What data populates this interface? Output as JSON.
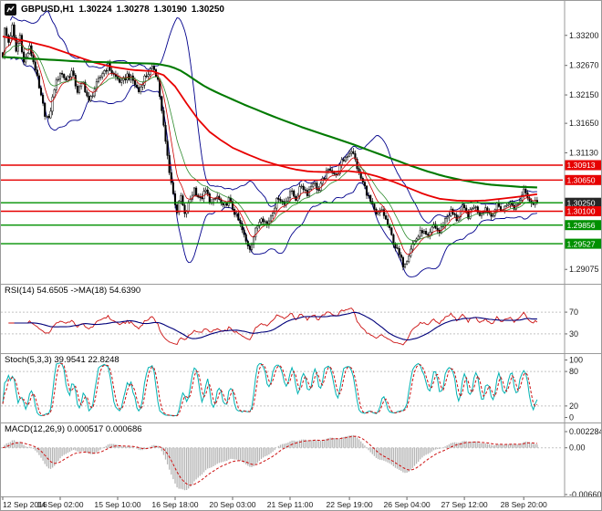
{
  "header": {
    "symbol": "GBPUSD,H1",
    "open": "1.30224",
    "high": "1.30278",
    "low": "1.30190",
    "close": "1.30250"
  },
  "chart_data": {
    "type": "candlestick",
    "symbol": "GBPUSD",
    "timeframe": "H1",
    "quote": {
      "open": 1.30224,
      "high": 1.30278,
      "low": 1.3019,
      "close": 1.3025
    },
    "time_axis": {
      "labels": [
        "12 Sep 2016",
        "14 Sep 02:00",
        "15 Sep 10:00",
        "16 Sep 18:00",
        "20 Sep 03:00",
        "21 Sep 11:00",
        "22 Sep 19:00",
        "26 Sep 04:00",
        "27 Sep 12:00",
        "28 Sep 20:00"
      ],
      "bar_positions": [
        0,
        30,
        60,
        90,
        120,
        150,
        181,
        211,
        241,
        272
      ]
    },
    "main": {
      "bars": 280,
      "bid": 1.3025,
      "price_axis_range": [
        1.2895,
        1.3355
      ],
      "price_ticks": [
        {
          "label": "1.33200",
          "value": 1.332
        },
        {
          "label": "1.32670",
          "value": 1.3267
        },
        {
          "label": "1.32150",
          "value": 1.3215
        },
        {
          "label": "1.31650",
          "value": 1.3165
        },
        {
          "label": "1.31130",
          "value": 1.3113
        },
        {
          "label": "1.29075",
          "value": 1.29075
        }
      ],
      "levels": [
        {
          "label": "1.30913",
          "price": 1.30913,
          "line_color": "#e60000",
          "tag_color": "#e60000"
        },
        {
          "label": "1.30650",
          "price": 1.3065,
          "line_color": "#e60000",
          "tag_color": "#e60000"
        },
        {
          "label": "1.30250",
          "price": 1.3025,
          "line_color": "#009000",
          "tag_color": "#262626"
        },
        {
          "label": "1.30100",
          "price": 1.301,
          "line_color": "#e60000",
          "tag_color": "#e60000"
        },
        {
          "label": "1.29856",
          "price": 1.29856,
          "line_color": "#009000",
          "tag_color": "#009000"
        },
        {
          "label": "1.29527",
          "price": 1.29527,
          "line_color": "#009000",
          "tag_color": "#009000"
        }
      ],
      "close_waypoints": [
        [
          0,
          1.3285
        ],
        [
          1,
          1.333
        ],
        [
          3,
          1.3308
        ],
        [
          5,
          1.3335
        ],
        [
          7,
          1.3292
        ],
        [
          9,
          1.332
        ],
        [
          11,
          1.3272
        ],
        [
          14,
          1.3298
        ],
        [
          17,
          1.3262
        ],
        [
          19,
          1.3225
        ],
        [
          22,
          1.3182
        ],
        [
          24,
          1.317
        ],
        [
          27,
          1.3228
        ],
        [
          30,
          1.3255
        ],
        [
          33,
          1.3242
        ],
        [
          36,
          1.3256
        ],
        [
          39,
          1.3222
        ],
        [
          42,
          1.3236
        ],
        [
          45,
          1.3202
        ],
        [
          48,
          1.3226
        ],
        [
          52,
          1.3254
        ],
        [
          55,
          1.3266
        ],
        [
          58,
          1.325
        ],
        [
          62,
          1.3236
        ],
        [
          65,
          1.325
        ],
        [
          68,
          1.324
        ],
        [
          71,
          1.3221
        ],
        [
          74,
          1.3246
        ],
        [
          77,
          1.3258
        ],
        [
          79,
          1.3262
        ],
        [
          81,
          1.3242
        ],
        [
          83,
          1.3185
        ],
        [
          85,
          1.3132
        ],
        [
          87,
          1.3082
        ],
        [
          89,
          1.304
        ],
        [
          91,
          1.301
        ],
        [
          93,
          1.3036
        ],
        [
          95,
          1.3002
        ],
        [
          97,
          1.3022
        ],
        [
          100,
          1.305
        ],
        [
          103,
          1.303
        ],
        [
          106,
          1.3046
        ],
        [
          109,
          1.3022
        ],
        [
          112,
          1.3036
        ],
        [
          115,
          1.3016
        ],
        [
          118,
          1.303
        ],
        [
          121,
          1.3008
        ],
        [
          124,
          1.2986
        ],
        [
          127,
          1.2956
        ],
        [
          129,
          1.2946
        ],
        [
          132,
          1.2976
        ],
        [
          135,
          1.3002
        ],
        [
          138,
          1.2986
        ],
        [
          141,
          1.3012
        ],
        [
          144,
          1.3036
        ],
        [
          147,
          1.3022
        ],
        [
          150,
          1.3046
        ],
        [
          153,
          1.3032
        ],
        [
          156,
          1.3056
        ],
        [
          159,
          1.3042
        ],
        [
          162,
          1.3062
        ],
        [
          165,
          1.3046
        ],
        [
          168,
          1.3072
        ],
        [
          171,
          1.3086
        ],
        [
          174,
          1.3072
        ],
        [
          177,
          1.3096
        ],
        [
          180,
          1.311
        ],
        [
          182,
          1.3118
        ],
        [
          184,
          1.31
        ],
        [
          186,
          1.3076
        ],
        [
          189,
          1.3052
        ],
        [
          192,
          1.3026
        ],
        [
          195,
          1.3002
        ],
        [
          198,
          1.3012
        ],
        [
          201,
          1.2986
        ],
        [
          204,
          1.2956
        ],
        [
          207,
          1.2932
        ],
        [
          209,
          1.2916
        ],
        [
          211,
          1.2926
        ],
        [
          213,
          1.2946
        ],
        [
          216,
          1.2962
        ],
        [
          219,
          1.2976
        ],
        [
          222,
          1.2962
        ],
        [
          225,
          1.2986
        ],
        [
          228,
          1.2972
        ],
        [
          231,
          1.2996
        ],
        [
          234,
          1.301
        ],
        [
          237,
          1.2996
        ],
        [
          240,
          1.3016
        ],
        [
          243,
          1.3002
        ],
        [
          246,
          1.302
        ],
        [
          249,
          1.3006
        ],
        [
          252,
          1.3016
        ],
        [
          255,
          1.3002
        ],
        [
          258,
          1.302
        ],
        [
          261,
          1.3012
        ],
        [
          264,
          1.3026
        ],
        [
          267,
          1.3016
        ],
        [
          270,
          1.303
        ],
        [
          272,
          1.3054
        ],
        [
          274,
          1.3036
        ],
        [
          276,
          1.3021
        ],
        [
          278,
          1.303
        ],
        [
          279,
          1.3025
        ]
      ],
      "ma_red_waypoints": [
        [
          0,
          1.3318
        ],
        [
          12,
          1.331
        ],
        [
          24,
          1.33
        ],
        [
          36,
          1.3286
        ],
        [
          48,
          1.3272
        ],
        [
          58,
          1.3264
        ],
        [
          68,
          1.3259
        ],
        [
          78,
          1.3257
        ],
        [
          84,
          1.325
        ],
        [
          90,
          1.323
        ],
        [
          96,
          1.32
        ],
        [
          102,
          1.3172
        ],
        [
          108,
          1.315
        ],
        [
          114,
          1.3135
        ],
        [
          120,
          1.3122
        ],
        [
          128,
          1.311
        ],
        [
          136,
          1.3099
        ],
        [
          144,
          1.3091
        ],
        [
          152,
          1.3084
        ],
        [
          160,
          1.308
        ],
        [
          170,
          1.3079
        ],
        [
          180,
          1.3081
        ],
        [
          188,
          1.3078
        ],
        [
          196,
          1.3071
        ],
        [
          204,
          1.3062
        ],
        [
          212,
          1.3051
        ],
        [
          220,
          1.304
        ],
        [
          228,
          1.3032
        ],
        [
          236,
          1.3029
        ],
        [
          244,
          1.3028
        ],
        [
          252,
          1.3029
        ],
        [
          260,
          1.3032
        ],
        [
          268,
          1.3035
        ],
        [
          279,
          1.304
        ]
      ],
      "ma_green_waypoints": [
        [
          0,
          1.3282
        ],
        [
          20,
          1.3278
        ],
        [
          40,
          1.3274
        ],
        [
          60,
          1.3272
        ],
        [
          80,
          1.327
        ],
        [
          88,
          1.3265
        ],
        [
          94,
          1.3256
        ],
        [
          100,
          1.3242
        ],
        [
          106,
          1.3229
        ],
        [
          112,
          1.3219
        ],
        [
          118,
          1.321
        ],
        [
          126,
          1.3198
        ],
        [
          134,
          1.3187
        ],
        [
          142,
          1.3176
        ],
        [
          150,
          1.3166
        ],
        [
          158,
          1.3156
        ],
        [
          166,
          1.3147
        ],
        [
          174,
          1.3138
        ],
        [
          182,
          1.3129
        ],
        [
          190,
          1.3119
        ],
        [
          198,
          1.3109
        ],
        [
          206,
          1.3099
        ],
        [
          214,
          1.3089
        ],
        [
          222,
          1.308
        ],
        [
          230,
          1.3072
        ],
        [
          238,
          1.3066
        ],
        [
          246,
          1.3061
        ],
        [
          254,
          1.3057
        ],
        [
          262,
          1.3055
        ],
        [
          270,
          1.3053
        ],
        [
          279,
          1.3052
        ]
      ],
      "colors": {
        "candle_up": "#ffffff",
        "candle_down": "#000000",
        "bollinger": "#00008b",
        "ma_red": "#e80000",
        "ma_green": "#007a00",
        "ema_fast": "#cc0000",
        "ema_slow": "#2e8b2e"
      }
    },
    "rsi": {
      "label": "RSI(14) 54.6505 ->MA(18) 54.6390",
      "period": 14,
      "ma_period": 18,
      "value": 54.6505,
      "ma_value": 54.639,
      "levels": [
        70,
        30
      ],
      "line_color": "#cc1111",
      "ma_color": "#00007a"
    },
    "stoch": {
      "label": "Stoch(5,3,3) 39.9541 22.8248",
      "k_value": 39.9541,
      "d_value": 22.8248,
      "levels": [
        80,
        20
      ],
      "scale_labels": [
        {
          "label": "100",
          "value": 100
        },
        {
          "label": "80",
          "value": 80
        },
        {
          "label": "20",
          "value": 20
        },
        {
          "label": "0",
          "value": 0
        }
      ],
      "k_color": "#00b3b3",
      "d_color": "#cc1111"
    },
    "macd": {
      "label": "MACD(12,26,9) 0.000517 0.000686",
      "value": 0.000517,
      "signal": 0.000686,
      "scale_labels": [
        {
          "label": "0.0022846",
          "value": 0.0022846
        },
        {
          "label": "0.00",
          "value": 0
        },
        {
          "label": "-0.0066057",
          "value": -0.0066057
        }
      ],
      "hist_color": "#b5b5b5",
      "signal_color": "#cc1111"
    }
  }
}
